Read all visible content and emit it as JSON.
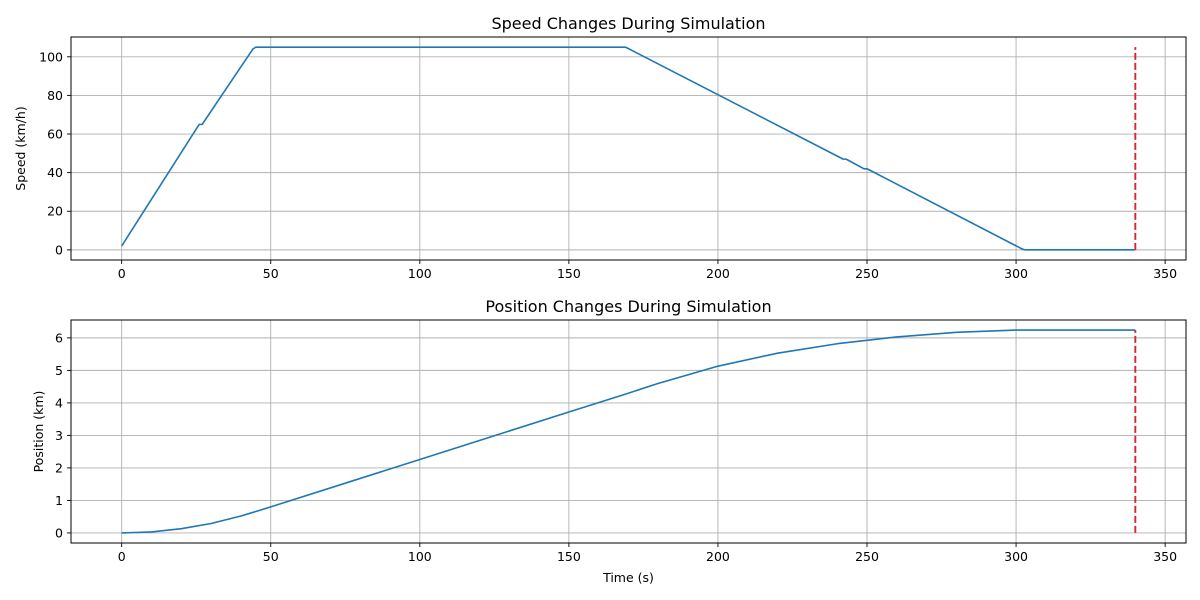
{
  "chart_data": [
    {
      "type": "line",
      "title": "Speed Changes During Simulation",
      "xlabel": "",
      "ylabel": "Speed (km/h)",
      "xlim": [
        -17,
        357
      ],
      "ylim": [
        -5.25,
        110.25
      ],
      "xticks": [
        0,
        50,
        100,
        150,
        200,
        250,
        300,
        350
      ],
      "yticks": [
        0,
        20,
        40,
        60,
        80,
        100
      ],
      "grid": true,
      "series": [
        {
          "color": "#1f77b4",
          "style": "solid",
          "x": [
            0,
            26,
            27,
            44,
            45,
            169,
            242,
            243,
            249,
            250,
            302,
            303,
            340
          ],
          "y": [
            2,
            65,
            65,
            104,
            105,
            105,
            47,
            47,
            42,
            42,
            0.5,
            0,
            0
          ]
        },
        {
          "color": "#d62728",
          "style": "dashed",
          "x": [
            340,
            340
          ],
          "y": [
            0,
            105
          ]
        }
      ]
    },
    {
      "type": "line",
      "title": "Position Changes During Simulation",
      "xlabel": "Time (s)",
      "ylabel": "Position (km)",
      "xlim": [
        -17,
        357
      ],
      "ylim": [
        -0.31,
        6.55
      ],
      "xticks": [
        0,
        50,
        100,
        150,
        200,
        250,
        300,
        350
      ],
      "yticks": [
        0,
        1,
        2,
        3,
        4,
        5,
        6
      ],
      "grid": true,
      "series": [
        {
          "color": "#1f77b4",
          "style": "solid",
          "x": [
            0,
            10,
            20,
            30,
            40,
            45,
            50,
            75,
            100,
            125,
            150,
            169,
            180,
            200,
            220,
            240,
            260,
            280,
            300,
            340
          ],
          "y": [
            0,
            0.03,
            0.13,
            0.29,
            0.52,
            0.66,
            0.8,
            1.53,
            2.26,
            2.99,
            3.72,
            4.27,
            4.6,
            5.13,
            5.53,
            5.82,
            6.03,
            6.17,
            6.24,
            6.24
          ]
        },
        {
          "color": "#d62728",
          "style": "dashed",
          "x": [
            340,
            340
          ],
          "y": [
            0,
            6.24
          ]
        }
      ]
    }
  ]
}
